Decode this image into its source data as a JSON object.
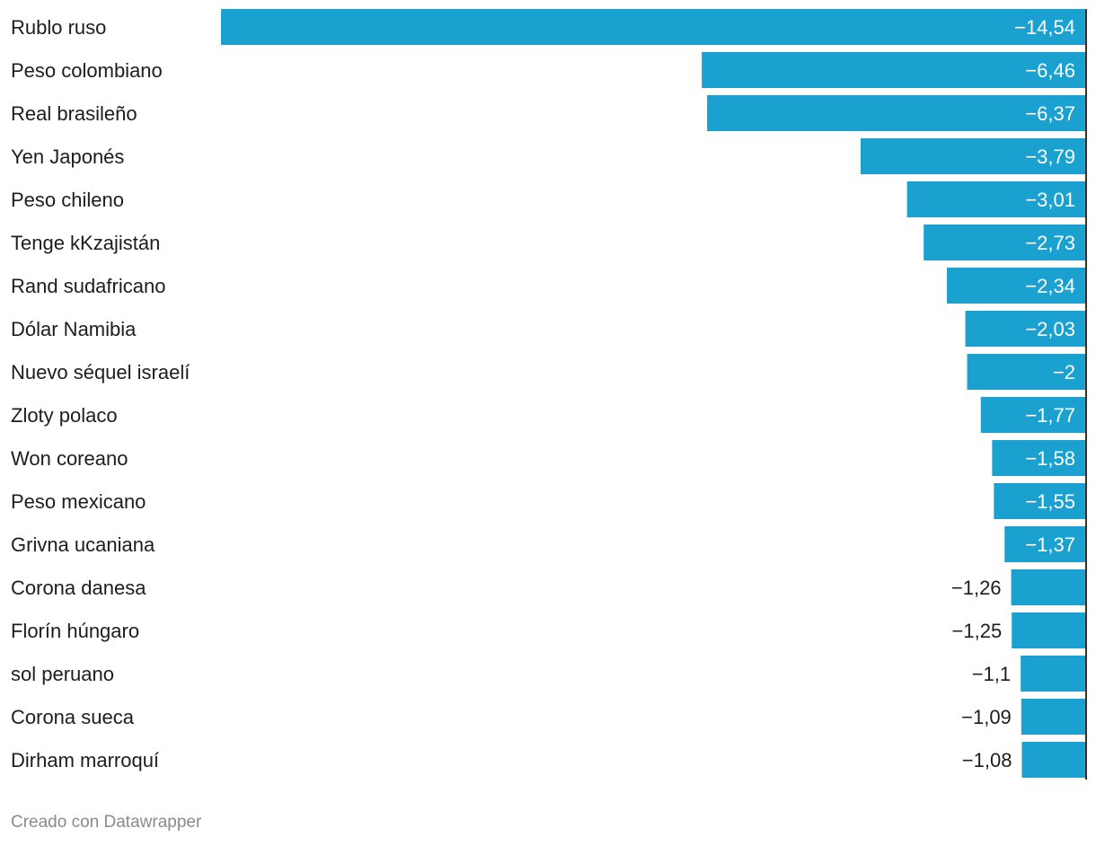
{
  "chart_data": {
    "type": "bar",
    "orientation": "horizontal",
    "categories": [
      "Rublo ruso",
      "Peso colombiano",
      "Real brasileño",
      "Yen Japonés",
      "Peso chileno",
      "Tenge kKzajistán",
      "Rand sudafricano",
      "Dólar Namibia",
      "Nuevo séquel israelí",
      "Zloty polaco",
      "Won coreano",
      "Peso mexicano",
      "Grivna ucaniana",
      "Corona danesa",
      "Florín húngaro",
      "sol peruano",
      "Corona sueca",
      "Dirham marroquí"
    ],
    "values": [
      -14.54,
      -6.46,
      -6.37,
      -3.79,
      -3.01,
      -2.73,
      -2.34,
      -2.03,
      -2,
      -1.77,
      -1.58,
      -1.55,
      -1.37,
      -1.26,
      -1.25,
      -1.1,
      -1.09,
      -1.08
    ],
    "value_labels": [
      "−14,54",
      "−6,46",
      "−6,37",
      "−3,79",
      "−3,01",
      "−2,73",
      "−2,34",
      "−2,03",
      "−2",
      "−1,77",
      "−1,58",
      "−1,55",
      "−1,37",
      "−1,26",
      "−1,25",
      "−1,1",
      "−1,09",
      "−1,08"
    ],
    "xlim": [
      -14.54,
      0
    ],
    "bar_color": "#1aa1cf",
    "baseline_color": "#333333",
    "title": "",
    "xlabel": "",
    "ylabel": ""
  },
  "footer": {
    "credit": "Creado con Datawrapper"
  }
}
